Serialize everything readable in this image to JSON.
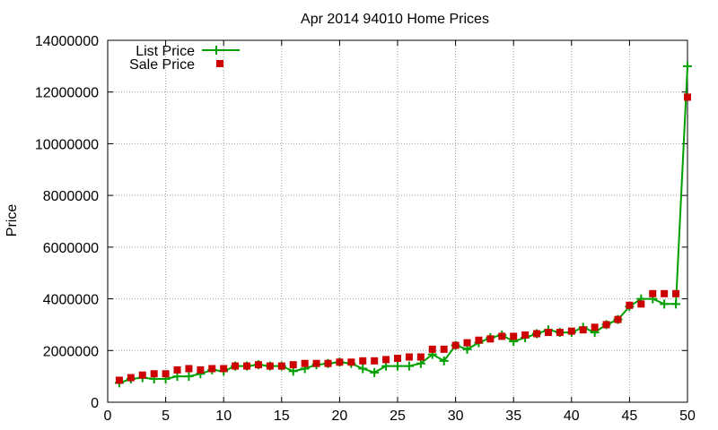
{
  "chart_data": {
    "type": "line",
    "title": "Apr 2014 94010 Home Prices",
    "xlabel": "",
    "ylabel": "Price",
    "xlim": [
      0,
      50
    ],
    "ylim": [
      0,
      14000000
    ],
    "x_ticks": [
      0,
      5,
      10,
      15,
      20,
      25,
      30,
      35,
      40,
      45,
      50
    ],
    "y_ticks": [
      0,
      2000000,
      4000000,
      6000000,
      8000000,
      10000000,
      12000000,
      14000000
    ],
    "grid": true,
    "legend_position": "top-left",
    "series": [
      {
        "name": "List Price",
        "style": "lines+crosshair-points",
        "color": "#00a000",
        "x": [
          1,
          2,
          3,
          4,
          5,
          6,
          7,
          8,
          9,
          10,
          11,
          12,
          13,
          14,
          15,
          16,
          17,
          18,
          19,
          20,
          21,
          22,
          23,
          24,
          25,
          26,
          27,
          28,
          29,
          30,
          31,
          32,
          33,
          34,
          35,
          36,
          37,
          38,
          39,
          40,
          41,
          42,
          43,
          44,
          45,
          46,
          47,
          48,
          49,
          50
        ],
        "values": [
          750000,
          900000,
          950000,
          900000,
          900000,
          1000000,
          1000000,
          1100000,
          1250000,
          1200000,
          1400000,
          1400000,
          1450000,
          1400000,
          1400000,
          1200000,
          1300000,
          1450000,
          1500000,
          1550000,
          1500000,
          1300000,
          1150000,
          1400000,
          1400000,
          1400000,
          1500000,
          1850000,
          1600000,
          2200000,
          2050000,
          2300000,
          2500000,
          2600000,
          2350000,
          2500000,
          2650000,
          2800000,
          2700000,
          2700000,
          2900000,
          2700000,
          3000000,
          3200000,
          3700000,
          4000000,
          4000000,
          3800000,
          3800000,
          13000000
        ]
      },
      {
        "name": "Sale Price",
        "style": "points",
        "color": "#cc0000",
        "x": [
          1,
          2,
          3,
          4,
          5,
          6,
          7,
          8,
          9,
          10,
          11,
          12,
          13,
          14,
          15,
          16,
          17,
          18,
          19,
          20,
          21,
          22,
          23,
          24,
          25,
          26,
          27,
          28,
          29,
          30,
          31,
          32,
          33,
          34,
          35,
          36,
          37,
          38,
          39,
          40,
          41,
          42,
          43,
          44,
          45,
          46,
          47,
          48,
          49,
          50
        ],
        "values": [
          850000,
          950000,
          1050000,
          1100000,
          1100000,
          1250000,
          1300000,
          1250000,
          1300000,
          1300000,
          1400000,
          1400000,
          1450000,
          1400000,
          1400000,
          1450000,
          1500000,
          1500000,
          1500000,
          1550000,
          1550000,
          1600000,
          1600000,
          1650000,
          1700000,
          1750000,
          1750000,
          2050000,
          2050000,
          2200000,
          2300000,
          2400000,
          2450000,
          2550000,
          2550000,
          2600000,
          2650000,
          2700000,
          2700000,
          2750000,
          2800000,
          2900000,
          3000000,
          3200000,
          3750000,
          3800000,
          4200000,
          4200000,
          4200000,
          11800000
        ]
      }
    ]
  }
}
